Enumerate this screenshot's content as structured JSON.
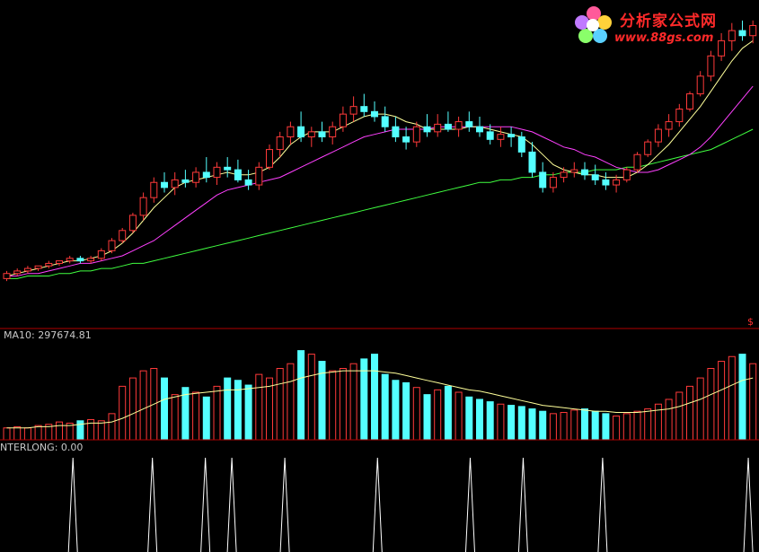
{
  "vol_label": "MA10: 297674.81",
  "ind_label": "NTERLONG: 0.00",
  "logo": {
    "title": "分析家公式网",
    "url": "www.88gs.com"
  },
  "marker": "$",
  "colors": {
    "up": "#ff3a3a",
    "down": "#54ffff",
    "ma5": "#ffff9a",
    "ma10": "#ff40ff",
    "ma30": "#40ff40",
    "spike": "#ffffff",
    "divider": "#b00000"
  },
  "chart_data": [
    {
      "type": "candlestick",
      "panel": "price",
      "ohlc": [
        [
          2,
          5,
          1,
          4
        ],
        [
          4,
          6,
          3,
          5
        ],
        [
          5,
          7,
          4,
          6
        ],
        [
          6,
          7,
          5,
          7
        ],
        [
          7,
          9,
          6,
          8
        ],
        [
          8,
          9,
          7,
          9
        ],
        [
          9,
          11,
          8,
          10
        ],
        [
          10,
          11,
          8,
          9
        ],
        [
          9,
          11,
          8,
          10
        ],
        [
          10,
          14,
          9,
          13
        ],
        [
          13,
          18,
          12,
          17
        ],
        [
          17,
          22,
          16,
          21
        ],
        [
          21,
          28,
          20,
          27
        ],
        [
          27,
          36,
          25,
          34
        ],
        [
          34,
          42,
          32,
          40
        ],
        [
          40,
          44,
          36,
          38
        ],
        [
          38,
          44,
          35,
          41
        ],
        [
          41,
          45,
          38,
          40
        ],
        [
          40,
          46,
          38,
          44
        ],
        [
          44,
          50,
          40,
          42
        ],
        [
          42,
          48,
          39,
          46
        ],
        [
          46,
          50,
          42,
          45
        ],
        [
          45,
          49,
          40,
          41
        ],
        [
          41,
          45,
          37,
          39
        ],
        [
          39,
          48,
          37,
          46
        ],
        [
          46,
          55,
          45,
          53
        ],
        [
          53,
          60,
          50,
          58
        ],
        [
          58,
          64,
          55,
          62
        ],
        [
          62,
          68,
          56,
          58
        ],
        [
          58,
          62,
          54,
          60
        ],
        [
          60,
          64,
          56,
          58
        ],
        [
          58,
          64,
          55,
          62
        ],
        [
          62,
          70,
          60,
          67
        ],
        [
          67,
          74,
          64,
          70
        ],
        [
          70,
          75,
          66,
          68
        ],
        [
          68,
          72,
          64,
          66
        ],
        [
          66,
          70,
          60,
          62
        ],
        [
          62,
          66,
          56,
          58
        ],
        [
          58,
          62,
          53,
          56
        ],
        [
          56,
          64,
          54,
          62
        ],
        [
          62,
          67,
          58,
          60
        ],
        [
          60,
          67,
          58,
          63
        ],
        [
          63,
          68,
          60,
          61
        ],
        [
          61,
          66,
          58,
          64
        ],
        [
          64,
          68,
          60,
          62
        ],
        [
          62,
          66,
          58,
          60
        ],
        [
          60,
          63,
          55,
          57
        ],
        [
          57,
          62,
          54,
          59
        ],
        [
          59,
          62,
          54,
          58
        ],
        [
          58,
          60,
          50,
          52
        ],
        [
          52,
          56,
          42,
          44
        ],
        [
          44,
          48,
          36,
          38
        ],
        [
          38,
          44,
          36,
          42
        ],
        [
          42,
          46,
          40,
          44
        ],
        [
          44,
          48,
          42,
          45
        ],
        [
          45,
          48,
          41,
          43
        ],
        [
          43,
          47,
          39,
          41
        ],
        [
          41,
          44,
          37,
          39
        ],
        [
          39,
          43,
          36,
          41
        ],
        [
          41,
          46,
          40,
          45
        ],
        [
          45,
          52,
          44,
          51
        ],
        [
          51,
          57,
          50,
          56
        ],
        [
          56,
          63,
          54,
          61
        ],
        [
          61,
          67,
          58,
          64
        ],
        [
          64,
          71,
          62,
          69
        ],
        [
          69,
          76,
          68,
          75
        ],
        [
          75,
          84,
          74,
          82
        ],
        [
          82,
          92,
          80,
          90
        ],
        [
          90,
          99,
          88,
          96
        ],
        [
          96,
          103,
          92,
          100
        ],
        [
          100,
          104,
          96,
          98
        ],
        [
          98,
          104,
          95,
          102
        ]
      ],
      "ma5": [
        3,
        4,
        5,
        6,
        7,
        8,
        9,
        9,
        10,
        11,
        13,
        16,
        20,
        25,
        30,
        34,
        38,
        40,
        41,
        42,
        43,
        44,
        43,
        43,
        44,
        46,
        50,
        55,
        58,
        60,
        60,
        60,
        62,
        64,
        66,
        67,
        67,
        66,
        64,
        63,
        61,
        61,
        61,
        61,
        62,
        62,
        61,
        60,
        59,
        58,
        55,
        51,
        47,
        45,
        44,
        43,
        43,
        42,
        42,
        42,
        44,
        47,
        51,
        55,
        60,
        65,
        70,
        76,
        82,
        88,
        93,
        96
      ],
      "ma10": [
        3,
        3,
        4,
        4,
        5,
        6,
        7,
        8,
        8,
        9,
        10,
        11,
        13,
        15,
        17,
        20,
        23,
        26,
        29,
        32,
        35,
        37,
        38,
        39,
        40,
        41,
        42,
        44,
        46,
        48,
        50,
        52,
        54,
        56,
        58,
        59,
        60,
        61,
        61,
        61,
        61,
        62,
        62,
        62,
        62,
        62,
        62,
        62,
        62,
        61,
        60,
        58,
        56,
        54,
        53,
        51,
        50,
        48,
        46,
        45,
        44,
        44,
        45,
        47,
        49,
        51,
        54,
        58,
        63,
        68,
        73,
        78
      ],
      "ma30": [
        2,
        2,
        3,
        3,
        3,
        4,
        4,
        5,
        5,
        6,
        6,
        7,
        8,
        8,
        9,
        10,
        11,
        12,
        13,
        14,
        15,
        16,
        17,
        18,
        19,
        20,
        21,
        22,
        23,
        24,
        25,
        26,
        27,
        28,
        29,
        30,
        31,
        32,
        33,
        34,
        35,
        36,
        37,
        38,
        39,
        40,
        40,
        41,
        41,
        42,
        42,
        43,
        43,
        44,
        44,
        44,
        45,
        45,
        45,
        46,
        46,
        47,
        48,
        49,
        50,
        51,
        52,
        53,
        55,
        57,
        59,
        61
      ]
    },
    {
      "type": "bar",
      "panel": "volume",
      "series_name": "MA10",
      "values": [
        10,
        11,
        10,
        12,
        13,
        15,
        14,
        16,
        17,
        16,
        22,
        45,
        52,
        58,
        60,
        52,
        38,
        44,
        40,
        36,
        45,
        52,
        50,
        46,
        55,
        52,
        60,
        64,
        75,
        72,
        66,
        58,
        60,
        64,
        68,
        72,
        55,
        50,
        48,
        44,
        38,
        42,
        45,
        40,
        36,
        34,
        32,
        30,
        29,
        28,
        26,
        24,
        22,
        23,
        25,
        26,
        24,
        22,
        20,
        22,
        24,
        26,
        30,
        34,
        40,
        45,
        52,
        60,
        66,
        70,
        72,
        64
      ],
      "ma": [
        10,
        10,
        10,
        11,
        11,
        12,
        12,
        13,
        14,
        14,
        15,
        18,
        22,
        26,
        30,
        34,
        36,
        38,
        39,
        40,
        41,
        42,
        42,
        43,
        44,
        45,
        47,
        49,
        52,
        54,
        56,
        57,
        58,
        58,
        58,
        58,
        57,
        56,
        54,
        52,
        50,
        48,
        46,
        44,
        42,
        41,
        39,
        37,
        35,
        33,
        31,
        29,
        28,
        27,
        26,
        25,
        24,
        24,
        23,
        23,
        23,
        24,
        25,
        26,
        28,
        31,
        34,
        38,
        42,
        46,
        50,
        52
      ]
    },
    {
      "type": "line",
      "panel": "indicator",
      "series_name": "NTERLONG",
      "spikes_at": [
        5,
        11,
        15,
        17,
        21,
        28,
        35,
        39,
        45,
        56
      ]
    }
  ]
}
